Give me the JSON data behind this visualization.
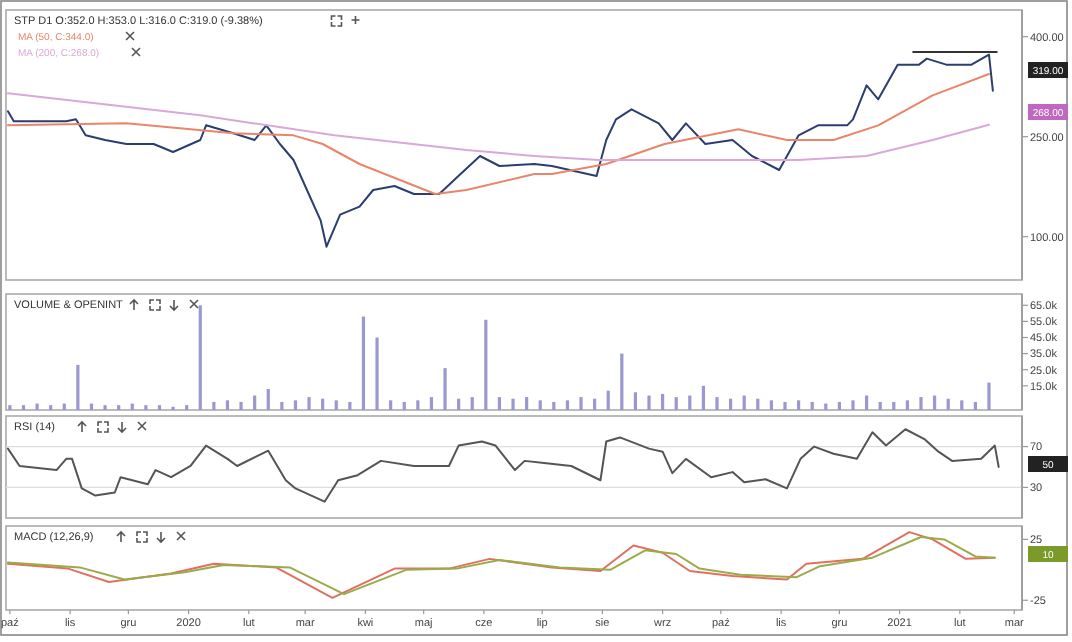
{
  "chart_data": [
    {
      "type": "line",
      "title": "STP D1 O:352.0 H:353.0 L:316.0 C:319.0 (-9.38%)",
      "legend": "top left",
      "xlim": [
        "2019-09-29",
        "2021-03-05"
      ],
      "ylim": [
        35,
        440
      ],
      "yticks": [
        {
          "value": 400,
          "label": "400.00"
        },
        {
          "value": 250,
          "label": "250.00"
        },
        {
          "value": 100,
          "label": "100.00"
        }
      ],
      "tick_labels": "y",
      "series": [
        {
          "color": "#2c3e70",
          "x": [
            "2019-09-30",
            "2019-10-03",
            "2019-10-30",
            "2019-11-04",
            "2019-11-09",
            "2019-11-19",
            "2019-11-30",
            "2019-12-14",
            "2019-12-24",
            "2020-01-07",
            "2020-01-10",
            "2020-01-24",
            "2020-02-04",
            "2020-02-10",
            "2020-02-17",
            "2020-02-24",
            "2020-03-01",
            "2020-03-09",
            "2020-03-12",
            "2020-03-19",
            "2020-03-29",
            "2020-04-05",
            "2020-04-16",
            "2020-04-26",
            "2020-05-09",
            "2020-05-20",
            "2020-05-30",
            "2020-06-09",
            "2020-06-27",
            "2020-07-06",
            "2020-07-29",
            "2020-08-03",
            "2020-08-08",
            "2020-08-16",
            "2020-08-30",
            "2020-09-06",
            "2020-09-13",
            "2020-09-23",
            "2020-10-07",
            "2020-10-17",
            "2020-10-31",
            "2020-11-10",
            "2020-11-20",
            "2020-12-05",
            "2020-12-08",
            "2020-12-15",
            "2020-12-21",
            "2020-12-31",
            "2021-01-11",
            "2021-01-15",
            "2021-01-25",
            "2021-02-07",
            "2021-02-16",
            "2021-02-18"
          ],
          "values": [
            288,
            273,
            273,
            276,
            252,
            245,
            239,
            239,
            227,
            245,
            267,
            255,
            245,
            267,
            239,
            215,
            176,
            124,
            85,
            133,
            145,
            170,
            176,
            164,
            164,
            194,
            221,
            206,
            209,
            206,
            191,
            245,
            276,
            291,
            270,
            245,
            270,
            239,
            245,
            221,
            200,
            252,
            267,
            267,
            276,
            327,
            306,
            358,
            358,
            367,
            358,
            358,
            373,
            319
          ]
        },
        {
          "name": "MA (50, C:344.0)",
          "color": "#e8866a",
          "x": [
            "2019-09-30",
            "2019-11-30",
            "2020-01-24",
            "2020-02-24",
            "2020-03-10",
            "2020-03-29",
            "2020-05-07",
            "2020-05-23",
            "2020-06-27",
            "2020-07-06",
            "2020-08-03",
            "2020-09-02",
            "2020-10-10",
            "2020-11-04",
            "2020-11-28",
            "2020-12-21",
            "2021-01-18",
            "2021-02-16"
          ],
          "values": [
            267,
            270,
            255,
            252,
            239,
            209,
            164,
            170,
            194,
            194,
            209,
            239,
            261,
            245,
            245,
            267,
            312,
            344
          ]
        },
        {
          "name": "MA (200, C:268.0)",
          "color": "#d9a8d8",
          "x": [
            "2019-09-30",
            "2020-01-07",
            "2020-03-16",
            "2020-05-23",
            "2020-06-27",
            "2020-07-30",
            "2020-11-10",
            "2020-12-15",
            "2021-01-18",
            "2021-02-16"
          ],
          "values": [
            315,
            282,
            252,
            230,
            221,
            215,
            215,
            221,
            245,
            268
          ]
        },
        {
          "color": "#333333",
          "x": [
            "2021-01-08",
            "2021-02-20"
          ],
          "values": [
            377,
            377
          ]
        }
      ],
      "annotations": [
        "319.00",
        "268.00"
      ]
    },
    {
      "type": "bar",
      "title": "VOLUME & OPENINT",
      "xlim": [
        "2019-09-29",
        "2021-03-05"
      ],
      "ylim": [
        0,
        72000
      ],
      "yticks": [
        {
          "value": 65000,
          "label": "65.0k"
        },
        {
          "value": 55000,
          "label": "55.0k"
        },
        {
          "value": 45000,
          "label": "45.0k"
        },
        {
          "value": 35000,
          "label": "35.0k"
        },
        {
          "value": 25000,
          "label": "25.0k"
        },
        {
          "value": 15000,
          "label": "15.0k"
        }
      ],
      "tick_labels": "y",
      "series": [
        {
          "color": "#9b97d0",
          "x": [
            "2019-10-01",
            "2019-10-08",
            "2019-10-15",
            "2019-10-22",
            "2019-10-29",
            "2019-11-05",
            "2019-11-12",
            "2019-11-19",
            "2019-11-26",
            "2019-12-03",
            "2019-12-10",
            "2019-12-17",
            "2019-12-24",
            "2019-12-31",
            "2020-01-07",
            "2020-01-14",
            "2020-01-21",
            "2020-01-28",
            "2020-02-04",
            "2020-02-11",
            "2020-02-18",
            "2020-02-25",
            "2020-03-03",
            "2020-03-10",
            "2020-03-17",
            "2020-03-24",
            "2020-03-31",
            "2020-04-07",
            "2020-04-14",
            "2020-04-21",
            "2020-04-28",
            "2020-05-05",
            "2020-05-12",
            "2020-05-19",
            "2020-05-26",
            "2020-06-02",
            "2020-06-09",
            "2020-06-16",
            "2020-06-23",
            "2020-06-30",
            "2020-07-07",
            "2020-07-14",
            "2020-07-21",
            "2020-07-28",
            "2020-08-04",
            "2020-08-11",
            "2020-08-18",
            "2020-08-25",
            "2020-09-01",
            "2020-09-08",
            "2020-09-15",
            "2020-09-22",
            "2020-09-29",
            "2020-10-06",
            "2020-10-13",
            "2020-10-20",
            "2020-10-27",
            "2020-11-03",
            "2020-11-10",
            "2020-11-17",
            "2020-11-24",
            "2020-12-01",
            "2020-12-08",
            "2020-12-15",
            "2020-12-22",
            "2020-12-29",
            "2021-01-05",
            "2021-01-12",
            "2021-01-19",
            "2021-01-26",
            "2021-02-02",
            "2021-02-09",
            "2021-02-16"
          ],
          "values": [
            3000,
            3000,
            4000,
            3000,
            4000,
            28000,
            4000,
            3000,
            3000,
            4000,
            3000,
            3000,
            2000,
            3000,
            65000,
            5000,
            6000,
            5000,
            9000,
            13000,
            5000,
            6000,
            8000,
            7000,
            6000,
            5000,
            58000,
            45000,
            6000,
            5000,
            6000,
            8000,
            26000,
            7000,
            8000,
            56000,
            8000,
            7000,
            8000,
            6000,
            5000,
            6000,
            8000,
            7000,
            12000,
            35000,
            11000,
            9000,
            10000,
            8000,
            9000,
            15000,
            8000,
            7000,
            9000,
            7000,
            6000,
            5000,
            6000,
            5000,
            4000,
            5000,
            6000,
            9000,
            5000,
            5000,
            6000,
            8000,
            9000,
            7000,
            6000,
            5000,
            17000
          ]
        }
      ]
    },
    {
      "type": "line",
      "title": "RSI (14)",
      "xlim": [
        "2019-09-29",
        "2021-03-05"
      ],
      "ylim": [
        0,
        100
      ],
      "yticks": [
        70,
        30
      ],
      "grid": "y",
      "tick_labels": "y",
      "series": [
        {
          "color": "#555555",
          "x": [
            "2019-09-30",
            "2019-10-06",
            "2019-10-25",
            "2019-10-30",
            "2019-11-02",
            "2019-11-07",
            "2019-11-14",
            "2019-11-24",
            "2019-11-27",
            "2019-12-11",
            "2019-12-15",
            "2019-12-23",
            "2020-01-02",
            "2020-01-10",
            "2020-01-21",
            "2020-01-26",
            "2020-02-11",
            "2020-02-20",
            "2020-02-25",
            "2020-03-11",
            "2020-03-18",
            "2020-03-28",
            "2020-04-09",
            "2020-04-26",
            "2020-05-14",
            "2020-05-19",
            "2020-05-31",
            "2020-06-07",
            "2020-06-17",
            "2020-06-22",
            "2020-07-02",
            "2020-07-16",
            "2020-07-31",
            "2020-08-03",
            "2020-08-10",
            "2020-08-25",
            "2020-09-01",
            "2020-09-06",
            "2020-09-13",
            "2020-09-26",
            "2020-10-07",
            "2020-10-13",
            "2020-10-24",
            "2020-11-04",
            "2020-11-11",
            "2020-11-18",
            "2020-11-28",
            "2020-12-10",
            "2020-12-18",
            "2020-12-25",
            "2021-01-04",
            "2021-01-14",
            "2021-01-21",
            "2021-01-28",
            "2021-02-12",
            "2021-02-19",
            "2021-02-21"
          ],
          "values": [
            68,
            51,
            47,
            58,
            58,
            29,
            22,
            25,
            40,
            33,
            47,
            40,
            51,
            71,
            58,
            51,
            66,
            37,
            29,
            16,
            37,
            42,
            56,
            51,
            51,
            71,
            75,
            71,
            47,
            56,
            54,
            51,
            37,
            75,
            79,
            68,
            65,
            44,
            58,
            40,
            45,
            35,
            38,
            29,
            58,
            70,
            63,
            58,
            84,
            71,
            87,
            77,
            65,
            56,
            58,
            71,
            50
          ]
        }
      ],
      "annotations": [
        "50"
      ]
    },
    {
      "type": "line",
      "title": "MACD (12,26,9)",
      "xlim": [
        "2019-09-29",
        "2021-03-05"
      ],
      "ylim": [
        -33,
        36
      ],
      "yticks": [
        25,
        -25
      ],
      "xticks": [
        {
          "value": "2019-10-01",
          "label": "paź"
        },
        {
          "value": "2019-11-01",
          "label": "lis"
        },
        {
          "value": "2019-12-01",
          "label": "gru"
        },
        {
          "value": "2020-01-01",
          "label": "2020"
        },
        {
          "value": "2020-02-01",
          "label": "lut"
        },
        {
          "value": "2020-03-01",
          "label": "mar"
        },
        {
          "value": "2020-04-01",
          "label": "kwi"
        },
        {
          "value": "2020-05-01",
          "label": "maj"
        },
        {
          "value": "2020-06-01",
          "label": "cze"
        },
        {
          "value": "2020-07-01",
          "label": "lip"
        },
        {
          "value": "2020-08-01",
          "label": "sie"
        },
        {
          "value": "2020-09-01",
          "label": "wrz"
        },
        {
          "value": "2020-10-01",
          "label": "paź"
        },
        {
          "value": "2020-11-01",
          "label": "lis"
        },
        {
          "value": "2020-12-01",
          "label": "gru"
        },
        {
          "value": "2021-01-01",
          "label": "2021"
        },
        {
          "value": "2021-02-01",
          "label": "lut"
        },
        {
          "value": "2021-03-01",
          "label": "mar"
        }
      ],
      "series": [
        {
          "color": "#e07060",
          "x": [
            "2019-09-30",
            "2019-10-31",
            "2019-11-21",
            "2019-12-23",
            "2020-01-14",
            "2020-02-15",
            "2020-03-15",
            "2020-04-16",
            "2020-05-14",
            "2020-06-04",
            "2020-07-06",
            "2020-07-31",
            "2020-08-17",
            "2020-09-01",
            "2020-09-15",
            "2020-10-07",
            "2020-11-04",
            "2020-11-14",
            "2020-12-13",
            "2021-01-06",
            "2021-01-18",
            "2021-02-04",
            "2021-02-19"
          ],
          "values": [
            5,
            1,
            -10,
            -3,
            5,
            2,
            -23,
            1,
            1,
            9,
            2,
            -1,
            20,
            14,
            -1,
            -5,
            -8,
            5,
            9,
            31,
            25,
            9,
            10
          ]
        },
        {
          "color": "#9aab4a",
          "x": [
            "2019-09-30",
            "2019-11-06",
            "2019-11-29",
            "2019-12-30",
            "2020-01-19",
            "2020-02-22",
            "2020-03-21",
            "2020-04-22",
            "2020-05-18",
            "2020-06-09",
            "2020-07-10",
            "2020-08-05",
            "2020-08-23",
            "2020-09-08",
            "2020-09-20",
            "2020-10-11",
            "2020-11-09",
            "2020-11-21",
            "2020-12-18",
            "2021-01-12",
            "2021-01-24",
            "2021-02-09",
            "2021-02-19"
          ],
          "values": [
            6,
            2,
            -8,
            -2,
            4,
            2,
            -20,
            0,
            1,
            8,
            2,
            0,
            16,
            13,
            1,
            -4,
            -6,
            3,
            10,
            27,
            25,
            11,
            10
          ]
        }
      ],
      "annotations": [
        "10"
      ]
    }
  ]
}
